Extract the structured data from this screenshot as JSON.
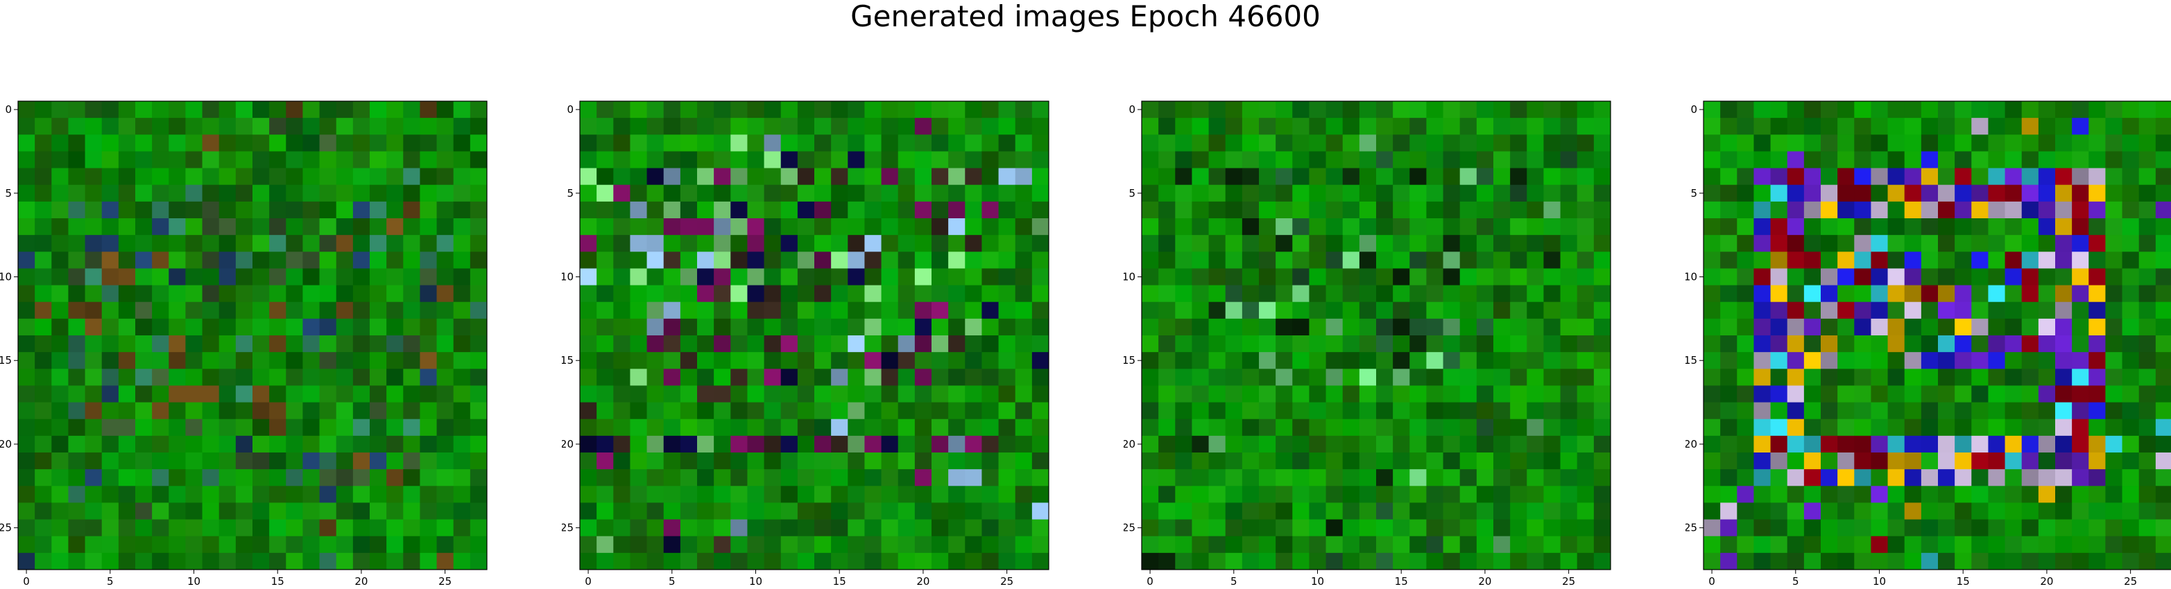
{
  "figure": {
    "title": "Generated images Epoch 46600"
  },
  "image_grid": {
    "pixel_grid": "28x28",
    "panel_count": 4,
    "x_ticks": [
      "0",
      "5",
      "10",
      "15",
      "20",
      "25"
    ],
    "y_ticks": [
      "0",
      "5",
      "10",
      "15",
      "20",
      "25"
    ],
    "dominant_color": "#1a8a12",
    "panels": [
      {
        "description": "mostly green noise with faint darker speckle pattern",
        "accent_colors": [
          "#2e7d60",
          "#3a5a30",
          "#6b4a18",
          "#1e3f6a"
        ]
      },
      {
        "description": "green noise with dark band and light green stripes near rows 4 and 20",
        "accent_colors": [
          "#0a0a40",
          "#3a2a20",
          "#8fb8e0",
          "#7ad078",
          "#7a1060"
        ]
      },
      {
        "description": "green noise with faint light stripe near row 4",
        "accent_colors": [
          "#0a2a0a",
          "#1e5a30",
          "#6fd080"
        ]
      },
      {
        "description": "green background with ring of blue and purple pixels",
        "accent_colors": [
          "#1a1acc",
          "#6020c0",
          "#8a0010",
          "#c0b0d0",
          "#e0b000",
          "#30c8d8"
        ]
      }
    ]
  }
}
